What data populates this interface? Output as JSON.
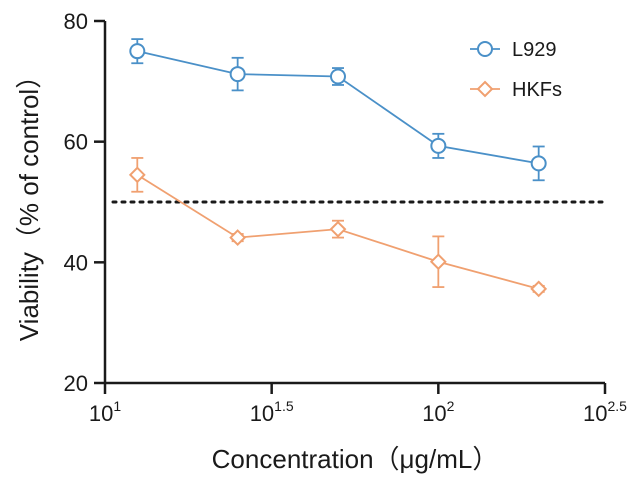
{
  "chart_data": {
    "type": "line",
    "xlabel": "Concentration（μg/mL）",
    "ylabel": "Viability（% of control）",
    "xscale": "log10",
    "xlim": [
      1,
      2.5
    ],
    "ylim": [
      20,
      80
    ],
    "x_ticks": [
      {
        "base": "10",
        "exp": "1"
      },
      {
        "base": "10",
        "exp": "1.5"
      },
      {
        "base": "10",
        "exp": "2"
      },
      {
        "base": "10",
        "exp": "2.5"
      }
    ],
    "y_ticks": [
      "20",
      "40",
      "60",
      "80"
    ],
    "reference_line": {
      "y": 50,
      "style": "dotted"
    },
    "legend_position": "top-right",
    "series": [
      {
        "name": "L929",
        "color": "#4a90c8",
        "marker": "circle",
        "points": [
          {
            "x": 12.5,
            "y": 75.0,
            "err": 2.0
          },
          {
            "x": 25,
            "y": 71.2,
            "err": 2.7
          },
          {
            "x": 50,
            "y": 70.8,
            "err": 1.4
          },
          {
            "x": 100,
            "y": 59.3,
            "err": 2.0
          },
          {
            "x": 200,
            "y": 56.4,
            "err": 2.8
          }
        ]
      },
      {
        "name": "HKFs",
        "color": "#f0a070",
        "marker": "diamond",
        "points": [
          {
            "x": 12.5,
            "y": 54.5,
            "err": 2.8
          },
          {
            "x": 25,
            "y": 44.1,
            "err": 0.6
          },
          {
            "x": 50,
            "y": 45.5,
            "err": 1.4
          },
          {
            "x": 100,
            "y": 40.1,
            "err": 4.2
          },
          {
            "x": 200,
            "y": 35.6,
            "err": 0.5
          }
        ]
      }
    ]
  }
}
